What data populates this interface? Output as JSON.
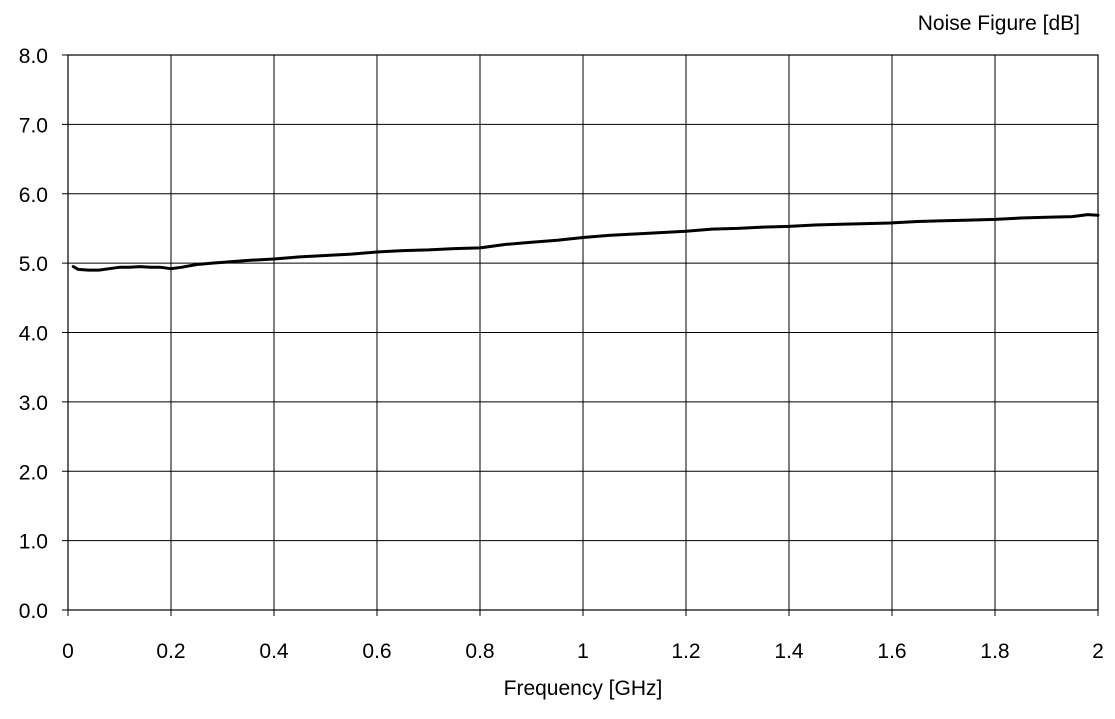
{
  "chart_data": {
    "type": "line",
    "title": "",
    "ylabel": "Noise Figure [dB]",
    "xlabel": "Frequency [GHz]",
    "xlim": [
      0,
      2
    ],
    "ylim": [
      0,
      8
    ],
    "grid": true,
    "x_ticks": [
      0,
      0.2,
      0.4,
      0.6,
      0.8,
      1,
      1.2,
      1.4,
      1.6,
      1.8,
      2
    ],
    "x_tick_labels": [
      "0",
      "0.2",
      "0.4",
      "0.6",
      "0.8",
      "1",
      "1.2",
      "1.4",
      "1.6",
      "1.8",
      "2"
    ],
    "y_ticks": [
      0,
      1,
      2,
      3,
      4,
      5,
      6,
      7,
      8
    ],
    "y_tick_labels": [
      "0.0",
      "1.0",
      "2.0",
      "3.0",
      "4.0",
      "5.0",
      "6.0",
      "7.0",
      "8.0"
    ],
    "series": [
      {
        "color": "#000000",
        "x": [
          0.01,
          0.02,
          0.04,
          0.06,
          0.08,
          0.1,
          0.12,
          0.14,
          0.16,
          0.18,
          0.2,
          0.22,
          0.25,
          0.28,
          0.3,
          0.35,
          0.4,
          0.45,
          0.5,
          0.55,
          0.6,
          0.65,
          0.7,
          0.75,
          0.8,
          0.85,
          0.9,
          0.95,
          1.0,
          1.05,
          1.1,
          1.15,
          1.2,
          1.25,
          1.3,
          1.35,
          1.4,
          1.45,
          1.5,
          1.55,
          1.6,
          1.65,
          1.7,
          1.75,
          1.8,
          1.85,
          1.9,
          1.95,
          1.98,
          2.0
        ],
        "y": [
          4.95,
          4.91,
          4.9,
          4.9,
          4.92,
          4.94,
          4.94,
          4.95,
          4.94,
          4.94,
          4.92,
          4.94,
          4.98,
          5.0,
          5.01,
          5.04,
          5.06,
          5.09,
          5.11,
          5.13,
          5.16,
          5.18,
          5.19,
          5.21,
          5.22,
          5.27,
          5.3,
          5.33,
          5.37,
          5.4,
          5.42,
          5.44,
          5.46,
          5.49,
          5.5,
          5.52,
          5.53,
          5.55,
          5.56,
          5.57,
          5.58,
          5.6,
          5.61,
          5.62,
          5.63,
          5.65,
          5.66,
          5.67,
          5.7,
          5.69
        ]
      }
    ]
  }
}
